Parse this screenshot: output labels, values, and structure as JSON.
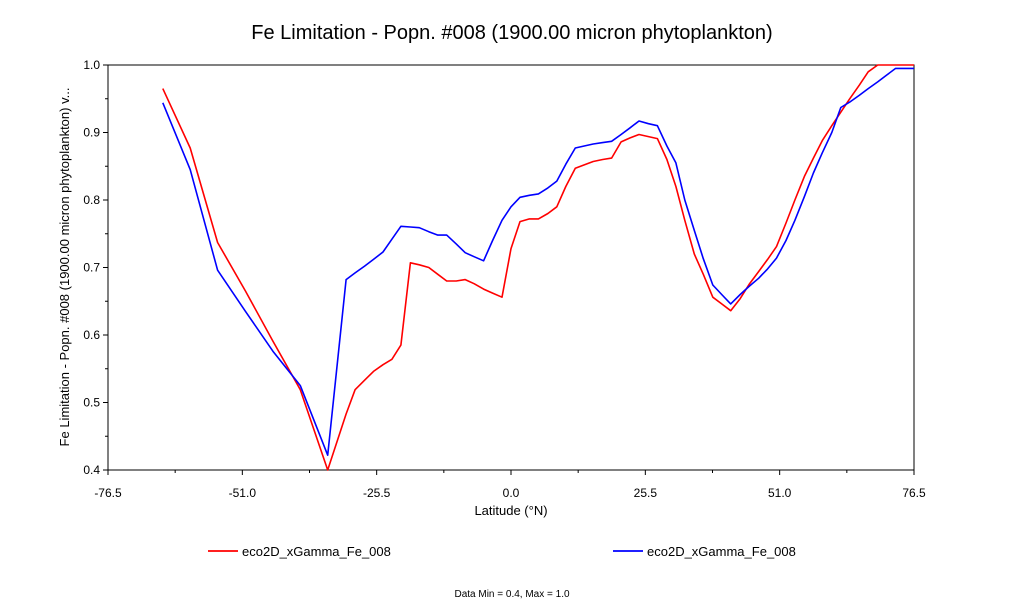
{
  "chart_data": {
    "type": "line",
    "title": "Fe Limitation - Popn. #008 (1900.00 micron phytoplankton)",
    "xlabel": "Latitude (°N)",
    "ylabel": "Fe Limitation - Popn. #008 (1900.00 micron phytoplankton) v...",
    "xlim": [
      -76.5,
      76.5
    ],
    "ylim": [
      0.4,
      1.0
    ],
    "x_ticks": [
      "-76.5",
      "-51.0",
      "-25.5",
      "0.0",
      "25.5",
      "51.0",
      "76.5"
    ],
    "y_ticks": [
      "0.4",
      "0.5",
      "0.6",
      "0.7",
      "0.8",
      "0.9",
      "1.0"
    ],
    "grid": false,
    "legend_position": "bottom",
    "footnote": "Data Min = 0.4, Max = 1.0",
    "series": [
      {
        "name": "eco2D_xGamma_Fe_008",
        "color": "#ff0000",
        "x": [
          -66.1,
          -60.9,
          -55.7,
          -50.4,
          -45.2,
          -40.0,
          -34.8,
          -31.3,
          -29.6,
          -27.8,
          -26.1,
          -24.3,
          -22.6,
          -20.9,
          -19.1,
          -17.4,
          -15.6,
          -13.9,
          -12.2,
          -10.4,
          -8.7,
          -7.0,
          -5.2,
          -3.5,
          -1.7,
          0.0,
          1.7,
          3.5,
          5.2,
          7.0,
          8.7,
          10.4,
          12.2,
          13.9,
          15.6,
          17.4,
          19.1,
          20.9,
          22.6,
          24.3,
          26.1,
          27.8,
          29.6,
          31.3,
          33.0,
          34.8,
          36.5,
          38.3,
          40.0,
          41.7,
          43.5,
          45.2,
          47.0,
          48.7,
          50.4,
          52.2,
          53.9,
          55.7,
          57.4,
          59.1,
          60.9,
          62.6,
          64.3,
          66.1,
          67.8,
          69.6,
          71.3,
          73.0,
          74.8,
          76.5
        ],
        "values": [
          0.965,
          0.877,
          0.737,
          0.665,
          0.591,
          0.519,
          0.4,
          0.483,
          0.519,
          0.533,
          0.546,
          0.556,
          0.564,
          0.585,
          0.707,
          0.704,
          0.7,
          0.69,
          0.68,
          0.68,
          0.682,
          0.676,
          0.668,
          0.662,
          0.656,
          0.728,
          0.768,
          0.772,
          0.772,
          0.78,
          0.79,
          0.82,
          0.847,
          0.852,
          0.857,
          0.86,
          0.862,
          0.886,
          0.892,
          0.897,
          0.894,
          0.891,
          0.86,
          0.82,
          0.77,
          0.72,
          0.69,
          0.656,
          0.646,
          0.636,
          0.654,
          0.675,
          0.694,
          0.712,
          0.731,
          0.766,
          0.8,
          0.835,
          0.862,
          0.888,
          0.91,
          0.93,
          0.95,
          0.97,
          0.99,
          1.0,
          1.0,
          1.0,
          1.0,
          1.0
        ]
      },
      {
        "name": "eco2D_xGamma_Fe_008",
        "color": "#0000ff",
        "x": [
          -66.1,
          -60.9,
          -55.7,
          -50.4,
          -45.2,
          -40.0,
          -34.8,
          -31.3,
          -29.6,
          -27.8,
          -26.1,
          -24.3,
          -22.6,
          -20.9,
          -19.1,
          -17.4,
          -15.6,
          -13.9,
          -12.2,
          -10.4,
          -8.7,
          -7.0,
          -5.2,
          -3.5,
          -1.7,
          0.0,
          1.7,
          3.5,
          5.2,
          7.0,
          8.7,
          10.4,
          12.2,
          13.9,
          15.6,
          17.4,
          19.1,
          20.9,
          22.6,
          24.3,
          26.1,
          27.8,
          29.6,
          31.3,
          33.0,
          34.8,
          36.5,
          38.3,
          40.0,
          41.7,
          43.5,
          45.2,
          47.0,
          48.7,
          50.4,
          52.2,
          53.9,
          55.7,
          57.4,
          59.1,
          60.9,
          62.6,
          64.3,
          66.1,
          67.8,
          69.6,
          71.3,
          73.0,
          74.8,
          76.5
        ],
        "values": [
          0.944,
          0.845,
          0.696,
          0.635,
          0.576,
          0.525,
          0.422,
          0.682,
          0.692,
          0.702,
          0.712,
          0.723,
          0.742,
          0.761,
          0.76,
          0.759,
          0.753,
          0.748,
          0.748,
          0.735,
          0.722,
          0.716,
          0.71,
          0.74,
          0.77,
          0.79,
          0.804,
          0.807,
          0.809,
          0.818,
          0.828,
          0.853,
          0.877,
          0.88,
          0.883,
          0.885,
          0.887,
          0.897,
          0.907,
          0.917,
          0.913,
          0.91,
          0.88,
          0.855,
          0.8,
          0.755,
          0.713,
          0.674,
          0.66,
          0.646,
          0.66,
          0.672,
          0.684,
          0.698,
          0.714,
          0.74,
          0.77,
          0.805,
          0.84,
          0.87,
          0.9,
          0.937,
          0.945,
          0.955,
          0.965,
          0.975,
          0.985,
          0.995,
          0.995,
          0.995
        ]
      }
    ]
  }
}
